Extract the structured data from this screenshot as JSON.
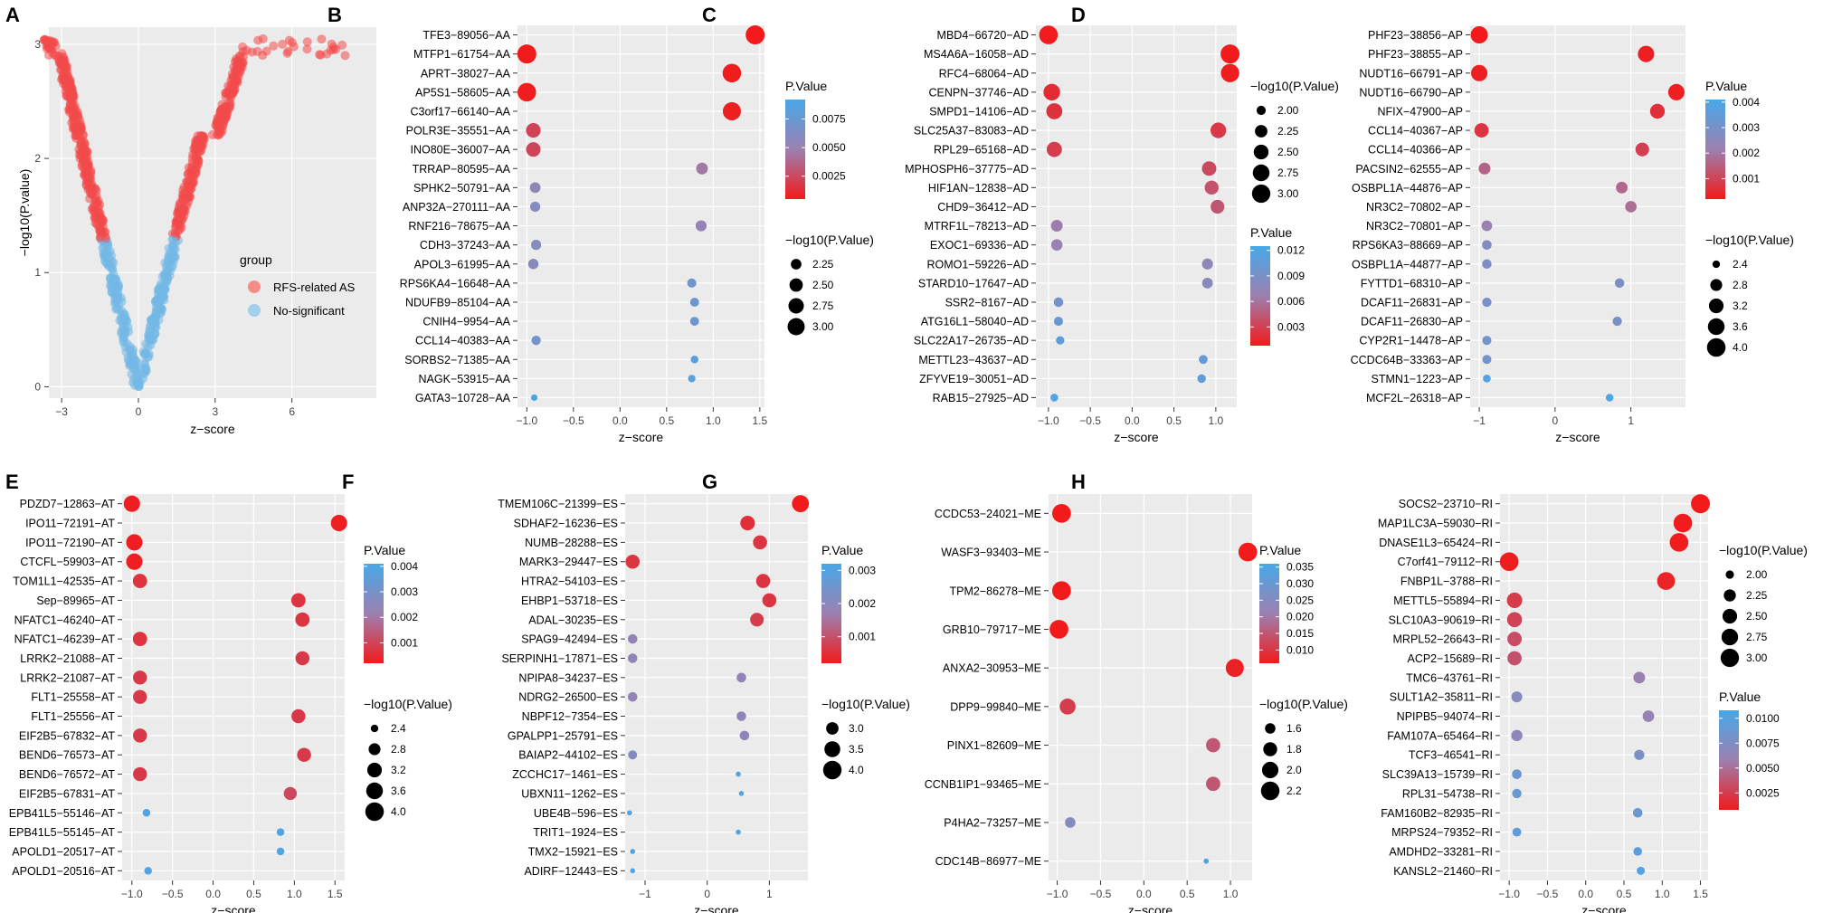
{
  "figure": {
    "panel_letters": [
      "A",
      "B",
      "C",
      "D",
      "E",
      "F",
      "G",
      "H"
    ]
  },
  "chart_data": [
    {
      "panel": "A",
      "type": "scatter",
      "title": "",
      "xlabel": "z−score",
      "ylabel": "−log10(P.value)",
      "xlim": [
        -3.5,
        9.3
      ],
      "ylim": [
        -0.1,
        3.15
      ],
      "xticks": [
        "−3",
        "0",
        "3",
        "6"
      ],
      "xtick_values": [
        -3,
        0,
        3,
        6
      ],
      "yticks": [
        "0",
        "1",
        "2",
        "3"
      ],
      "ytick_values": [
        0,
        1,
        2,
        3
      ],
      "legend": {
        "title": "group",
        "entries": [
          "RFS-related AS",
          "No-significant"
        ],
        "colors": [
          "#F8766D",
          "#8FC9EA"
        ]
      },
      "threshold_y": 1.3
    },
    {
      "panel": "B",
      "type": "scatter",
      "xlabel": "z−score",
      "xlim": [
        -1.1,
        1.55
      ],
      "xticks": [
        "−1.0",
        "−0.5",
        "0.0",
        "0.5",
        "1.0",
        "1.5"
      ],
      "xtick_values": [
        -1,
        -0.5,
        0,
        0.5,
        1,
        1.5
      ],
      "categories": [
        "TFE3−89056−AA",
        "MTFP1−61754−AA",
        "APRT−38027−AA",
        "AP5S1−58605−AA",
        "C3orf17−66140−AA",
        "POLR3E−35551−AA",
        "INO80E−36007−AA",
        "TRRAP−80595−AA",
        "SPHK2−50791−AA",
        "ANP32A−270111−AA",
        "RNF216−78675−AA",
        "CDH3−37243−AA",
        "APOL3−61995−AA",
        "RPS6KA4−16648−AA",
        "NDUFB9−85104−AA",
        "CNIH4−9954−AA",
        "CCL14−40383−AA",
        "SORBS2−71385−AA",
        "NAGK−53915−AA",
        "GATA3−10728−AA"
      ],
      "z": [
        1.45,
        -1.0,
        1.2,
        -1.0,
        1.2,
        -0.93,
        -0.93,
        0.88,
        -0.91,
        -0.91,
        0.87,
        -0.9,
        -0.93,
        0.77,
        0.8,
        0.8,
        -0.9,
        0.8,
        0.77,
        -0.92
      ],
      "p": [
        0.0005,
        0.0005,
        0.0006,
        0.0006,
        0.0007,
        0.0022,
        0.0023,
        0.0045,
        0.0055,
        0.006,
        0.0052,
        0.006,
        0.0058,
        0.007,
        0.0072,
        0.0072,
        0.0068,
        0.0083,
        0.0085,
        0.0092
      ],
      "size_legend": {
        "title": "−log10(P.Value)",
        "labels": [
          "2.25",
          "2.50",
          "2.75",
          "3.00"
        ],
        "values": [
          2.25,
          2.5,
          2.75,
          3.0
        ]
      },
      "size_range": [
        2.0,
        3.3
      ],
      "color_legend": {
        "title": "P.Value",
        "labels": [
          "0.0075",
          "0.0050",
          "0.0025"
        ],
        "values": [
          0.0075,
          0.005,
          0.0025
        ],
        "range": [
          0.0005,
          0.0092
        ]
      }
    },
    {
      "panel": "C",
      "type": "scatter",
      "xlabel": "z−score",
      "xlim": [
        -1.15,
        1.25
      ],
      "xticks": [
        "−1.0",
        "−0.5",
        "0.0",
        "0.5",
        "1.0"
      ],
      "xtick_values": [
        -1,
        -0.5,
        0,
        0.5,
        1
      ],
      "categories": [
        "MBD4−66720−AD",
        "MS4A6A−16058−AD",
        "RFC4−68064−AD",
        "CENPN−37746−AD",
        "SMPD1−14106−AD",
        "SLC25A37−83083−AD",
        "RPL29−65168−AD",
        "MPHOSPH6−37775−AD",
        "HIF1AN−12838−AD",
        "CHD9−36412−AD",
        "MTRF1L−78213−AD",
        "EXOC1−69336−AD",
        "ROMO1−59226−AD",
        "STARD10−17647−AD",
        "SSR2−8167−AD",
        "ATG16L1−58040−AD",
        "SLC22A17−26735−AD",
        "METTL23−43637−AD",
        "ZFYVE19−30051−AD",
        "RAB15−27925−AD"
      ],
      "z": [
        -1.0,
        1.17,
        1.17,
        -0.96,
        -0.93,
        1.03,
        -0.93,
        0.92,
        0.95,
        1.02,
        -0.9,
        -0.9,
        0.9,
        0.9,
        -0.88,
        -0.88,
        -0.86,
        0.85,
        0.83,
        -0.93
      ],
      "p": [
        0.0009,
        0.0008,
        0.001,
        0.0018,
        0.0022,
        0.0025,
        0.0028,
        0.0035,
        0.004,
        0.0042,
        0.0065,
        0.007,
        0.0075,
        0.008,
        0.0095,
        0.01,
        0.011,
        0.0105,
        0.0108,
        0.0118
      ],
      "size_legend": {
        "title": "−log10(P.Value)",
        "labels": [
          "2.00",
          "2.25",
          "2.50",
          "2.75",
          "3.00"
        ],
        "values": [
          2.0,
          2.25,
          2.5,
          2.75,
          3.0
        ]
      },
      "size_range": [
        1.85,
        3.1
      ],
      "color_legend": {
        "title": "P.Value",
        "labels": [
          "0.012",
          "0.009",
          "0.006",
          "0.003"
        ],
        "values": [
          0.012,
          0.009,
          0.006,
          0.003
        ],
        "range": [
          0.0008,
          0.0125
        ]
      }
    },
    {
      "panel": "D",
      "type": "scatter",
      "xlabel": "z−score",
      "xlim": [
        -1.12,
        1.72
      ],
      "xticks": [
        "−1",
        "0",
        "1"
      ],
      "xtick_values": [
        -1,
        0,
        1
      ],
      "categories": [
        "PHF23−38856−AP",
        "PHF23−38855−AP",
        "NUDT16−66791−AP",
        "NUDT16−66790−AP",
        "NFIX−47900−AP",
        "CCL14−40367−AP",
        "CCL14−40366−AP",
        "PACSIN2−62555−AP",
        "OSBPL1A−44876−AP",
        "NR3C2−70802−AP",
        "NR3C2−70801−AP",
        "RPS6KA3−88669−AP",
        "OSBPL1A−44877−AP",
        "FYTTD1−68310−AP",
        "DCAF11−26831−AP",
        "DCAF11−26830−AP",
        "CYP2R1−14478−AP",
        "CCDC64B−33363−AP",
        "STMN1−1223−AP",
        "MCF2L−26318−AP"
      ],
      "z": [
        -1.0,
        1.2,
        -1.0,
        1.6,
        1.35,
        -0.97,
        1.15,
        -0.93,
        0.88,
        1.0,
        -0.9,
        -0.9,
        -0.9,
        0.85,
        -0.9,
        0.82,
        -0.9,
        -0.9,
        -0.9,
        0.72
      ],
      "p": [
        0.0002,
        0.0003,
        0.0003,
        0.0003,
        0.0006,
        0.0007,
        0.0009,
        0.0016,
        0.0017,
        0.0018,
        0.0022,
        0.0028,
        0.0029,
        0.0029,
        0.003,
        0.003,
        0.0031,
        0.0031,
        0.0038,
        0.0039
      ],
      "size_legend": {
        "title": "−log10(P.Value)",
        "labels": [
          "2.4",
          "2.8",
          "3.2",
          "3.6",
          "4.0"
        ],
        "values": [
          2.4,
          2.8,
          3.2,
          3.6,
          4.0
        ]
      },
      "size_range": [
        2.3,
        4.1
      ],
      "color_legend": {
        "title": "P.Value",
        "labels": [
          "0.004",
          "0.003",
          "0.002",
          "0.001"
        ],
        "values": [
          0.004,
          0.003,
          0.002,
          0.001
        ],
        "range": [
          0.0002,
          0.0041
        ]
      }
    },
    {
      "panel": "E",
      "type": "scatter",
      "xlabel": "z−score",
      "xlim": [
        -1.12,
        1.62
      ],
      "xticks": [
        "−1.0",
        "−0.5",
        "0.0",
        "0.5",
        "1.0",
        "1.5"
      ],
      "xtick_values": [
        -1,
        -0.5,
        0,
        0.5,
        1,
        1.5
      ],
      "categories": [
        "PDZD7−12863−AT",
        "IPO11−72191−AT",
        "IPO11−72190−AT",
        "CTCFL−59903−AT",
        "TOM1L1−42535−AT",
        "Sep−89965−AT",
        "NFATC1−46240−AT",
        "NFATC1−46239−AT",
        "LRRK2−21088−AT",
        "LRRK2−21087−AT",
        "FLT1−25558−AT",
        "FLT1−25556−AT",
        "EIF2B5−67832−AT",
        "BEND6−76573−AT",
        "BEND6−76572−AT",
        "EIF2B5−67831−AT",
        "EPB41L5−55146−AT",
        "EPB41L5−55145−AT",
        "APOLD1−20517−AT",
        "APOLD1−20516−AT"
      ],
      "z": [
        -1.0,
        1.55,
        -0.97,
        -0.97,
        -0.9,
        1.05,
        1.1,
        -0.9,
        1.1,
        -0.9,
        -0.9,
        1.05,
        -0.9,
        1.12,
        -0.9,
        0.95,
        -0.82,
        0.83,
        0.83,
        -0.8
      ],
      "p": [
        0.0003,
        0.0003,
        0.0003,
        0.0003,
        0.0007,
        0.0007,
        0.0007,
        0.0007,
        0.0008,
        0.0008,
        0.0008,
        0.0008,
        0.0008,
        0.0008,
        0.0008,
        0.0011,
        0.0039,
        0.0039,
        0.0039,
        0.0039
      ],
      "size_legend": {
        "title": "−log10(P.Value)",
        "labels": [
          "2.4",
          "2.8",
          "3.2",
          "3.6",
          "4.0"
        ],
        "values": [
          2.4,
          2.8,
          3.2,
          3.6,
          4.0
        ]
      },
      "size_range": [
        2.3,
        4.1
      ],
      "color_legend": {
        "title": "P.Value",
        "labels": [
          "0.004",
          "0.003",
          "0.002",
          "0.001"
        ],
        "values": [
          0.004,
          0.003,
          0.002,
          0.001
        ],
        "range": [
          0.0002,
          0.0041
        ]
      }
    },
    {
      "panel": "F",
      "type": "scatter",
      "xlabel": "z−score",
      "xlim": [
        -1.32,
        1.62
      ],
      "xticks": [
        "−1",
        "0",
        "1"
      ],
      "xtick_values": [
        -1,
        0,
        1
      ],
      "categories": [
        "TMEM106C−21399−ES",
        "SDHAF2−16236−ES",
        "NUMB−28288−ES",
        "MARK3−29447−ES",
        "HTRA2−54103−ES",
        "EHBP1−53718−ES",
        "ADAL−30235−ES",
        "SPAG9−42494−ES",
        "SERPINH1−17871−ES",
        "NPIPA8−34237−ES",
        "NDRG2−26500−ES",
        "NBPF12−7354−ES",
        "GPALPP1−25791−ES",
        "BAIAP2−44102−ES",
        "ZCCHC17−1461−ES",
        "UBXN11−1262−ES",
        "UBE4B−596−ES",
        "TRIT1−1924−ES",
        "TMX2−15921−ES",
        "ADIRF−12443−ES"
      ],
      "z": [
        1.5,
        0.65,
        0.85,
        -1.2,
        0.9,
        1.0,
        0.8,
        -1.2,
        -1.2,
        0.55,
        -1.2,
        0.55,
        0.6,
        -1.2,
        0.5,
        0.55,
        -1.25,
        0.5,
        -1.2,
        -1.2
      ],
      "p": [
        0.0002,
        0.0005,
        0.0006,
        0.0006,
        0.0006,
        0.0006,
        0.0007,
        0.0019,
        0.0019,
        0.0019,
        0.0019,
        0.0019,
        0.0019,
        0.0021,
        0.0031,
        0.0031,
        0.0031,
        0.0031,
        0.0031,
        0.0031
      ],
      "size_legend": {
        "title": "−log10(P.Value)",
        "labels": [
          "3.0",
          "3.5",
          "4.0"
        ],
        "values": [
          3.0,
          3.5,
          4.0
        ]
      },
      "size_range": [
        2.5,
        4.1
      ],
      "color_legend": {
        "title": "P.Value",
        "labels": [
          "0.003",
          "0.002",
          "0.001"
        ],
        "values": [
          0.003,
          0.002,
          0.001
        ],
        "range": [
          0.0002,
          0.0032
        ]
      }
    },
    {
      "panel": "G",
      "type": "scatter",
      "xlabel": "z−score",
      "xlim": [
        -1.1,
        1.25
      ],
      "xticks": [
        "−1.0",
        "−0.5",
        "0.0",
        "0.5",
        "1.0"
      ],
      "xtick_values": [
        -1,
        -0.5,
        0,
        0.5,
        1
      ],
      "categories": [
        "CCDC53−24021−ME",
        "WASF3−93403−ME",
        "TPM2−86278−ME",
        "GRB10−79717−ME",
        "ANXA2−30953−ME",
        "DPP9−99840−ME",
        "PINX1−82609−ME",
        "CCNB1IP1−93465−ME",
        "P4HA2−73257−ME",
        "CDC14B−86977−ME"
      ],
      "z": [
        -0.95,
        1.2,
        -0.95,
        -0.98,
        1.05,
        -0.88,
        0.8,
        0.8,
        -0.85,
        0.72
      ],
      "p": [
        0.006,
        0.006,
        0.006,
        0.006,
        0.007,
        0.011,
        0.015,
        0.015,
        0.025,
        0.035
      ],
      "size_legend": {
        "title": "−log10(P.Value)",
        "labels": [
          "1.6",
          "1.8",
          "2.0",
          "2.2"
        ],
        "values": [
          1.6,
          1.8,
          2.0,
          2.2
        ]
      },
      "size_range": [
        1.45,
        2.25
      ],
      "color_legend": {
        "title": "P.Value",
        "labels": [
          "0.035",
          "0.030",
          "0.025",
          "0.020",
          "0.015",
          "0.010"
        ],
        "values": [
          0.035,
          0.03,
          0.025,
          0.02,
          0.015,
          0.01
        ],
        "range": [
          0.006,
          0.036
        ]
      }
    },
    {
      "panel": "H",
      "type": "scatter",
      "xlabel": "z−score",
      "xlim": [
        -1.12,
        1.6
      ],
      "xticks": [
        "−1.0",
        "−0.5",
        "0.0",
        "0.5",
        "1.0",
        "1.5"
      ],
      "xtick_values": [
        -1,
        -0.5,
        0,
        0.5,
        1,
        1.5
      ],
      "categories": [
        "SOCS2−23710−RI",
        "MAP1LC3A−59030−RI",
        "DNASE1L3−65424−RI",
        "C7orf41−79112−RI",
        "FNBP1L−3788−RI",
        "METTL5−55894−RI",
        "SLC10A3−90619−RI",
        "MRPL52−26643−RI",
        "ACP2−15689−RI",
        "TMC6−43761−RI",
        "SULT1A2−35811−RI",
        "NPIPB5−94074−RI",
        "FAM107A−65464−RI",
        "TCF3−46541−RI",
        "SLC39A13−15739−RI",
        "RPL31−54738−RI",
        "FAM160B2−82935−RI",
        "MRPS24−79352−RI",
        "AMDHD2−33281−RI",
        "KANSL2−21460−RI"
      ],
      "z": [
        1.5,
        1.27,
        1.22,
        -1.0,
        1.05,
        -0.93,
        -0.93,
        -0.93,
        -0.93,
        0.7,
        -0.9,
        0.82,
        -0.9,
        0.7,
        -0.9,
        -0.9,
        0.68,
        -0.9,
        0.68,
        0.72
      ],
      "p": [
        0.0008,
        0.0009,
        0.0009,
        0.0009,
        0.0012,
        0.0025,
        0.0028,
        0.0033,
        0.0035,
        0.006,
        0.007,
        0.0062,
        0.0065,
        0.0078,
        0.0085,
        0.0088,
        0.0086,
        0.0094,
        0.0096,
        0.0102
      ],
      "size_legend": {
        "title": "−log10(P.Value)",
        "labels": [
          "2.00",
          "2.25",
          "2.50",
          "2.75",
          "3.00"
        ],
        "values": [
          2.0,
          2.25,
          2.5,
          2.75,
          3.0
        ]
      },
      "size_range": [
        1.9,
        3.1
      ],
      "color_legend": {
        "title": "P.Value",
        "labels": [
          "0.0100",
          "0.0075",
          "0.0050",
          "0.0025"
        ],
        "values": [
          0.01,
          0.0075,
          0.005,
          0.0025
        ],
        "range": [
          0.0008,
          0.0108
        ]
      }
    }
  ],
  "colors": {
    "red": "#F21A1A",
    "purple": "#9C80B0",
    "blue": "#47A8E8",
    "panel_bg": "#EBEBEB",
    "grid": "#FFFFFF",
    "sig_red": "#F24A4A",
    "nonsig_blue": "#73B8E6"
  }
}
